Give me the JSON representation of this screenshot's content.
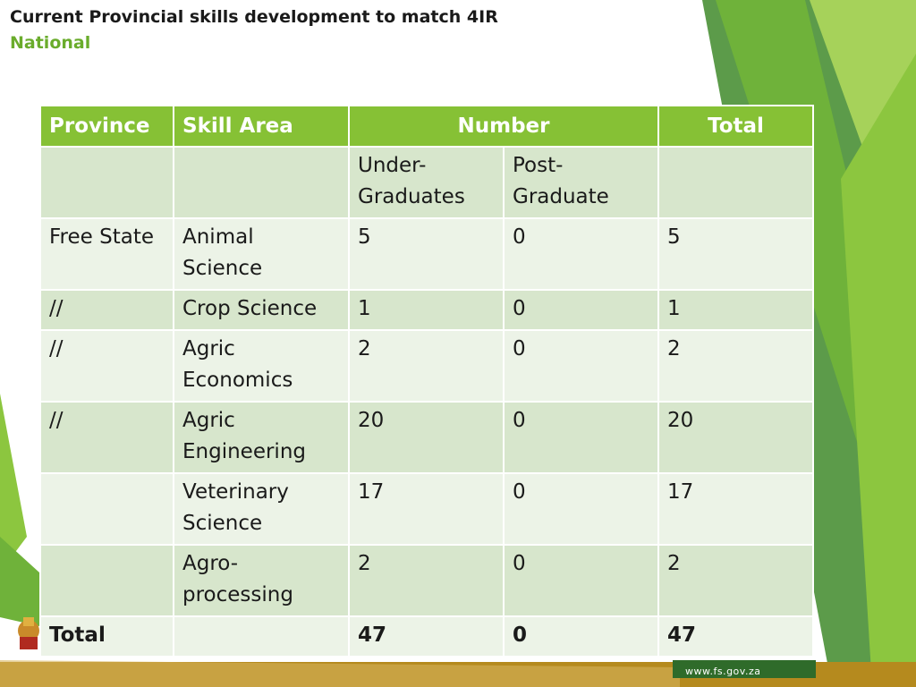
{
  "slide": {
    "title": "Current Provincial skills development to match 4IR",
    "subtitle": "National",
    "footer_url": "www.fs.gov.za"
  },
  "table": {
    "headers": {
      "province": "Province",
      "skill_area": "Skill Area",
      "number": "Number",
      "total": "Total"
    },
    "subheaders": {
      "undergrad": "Under-Graduates",
      "postgrad": "Post-Graduate"
    },
    "rows": [
      {
        "province": "Free State",
        "skill": "Animal Science",
        "under": "5",
        "post": "0",
        "total": "5"
      },
      {
        "province": "//",
        "skill": "Crop Science",
        "under": "1",
        "post": "0",
        "total": "1"
      },
      {
        "province": "//",
        "skill": "Agric Economics",
        "under": "2",
        "post": "0",
        "total": "2"
      },
      {
        "province": "//",
        "skill": "Agric Engineering",
        "under": "20",
        "post": "0",
        "total": "20"
      },
      {
        "province": "",
        "skill": "Veterinary Science",
        "under": "17",
        "post": "0",
        "total": "17"
      },
      {
        "province": "",
        "skill": "Agro-processing",
        "under": "2",
        "post": "0",
        "total": "2"
      }
    ],
    "total_row": {
      "label": "Total",
      "under": "47",
      "post": "0",
      "total": "47"
    }
  },
  "colors": {
    "header_green": "#86c135",
    "row_dark": "#d7e6cc",
    "row_light": "#ecf3e7",
    "subtitle_green": "#6aac2c"
  }
}
